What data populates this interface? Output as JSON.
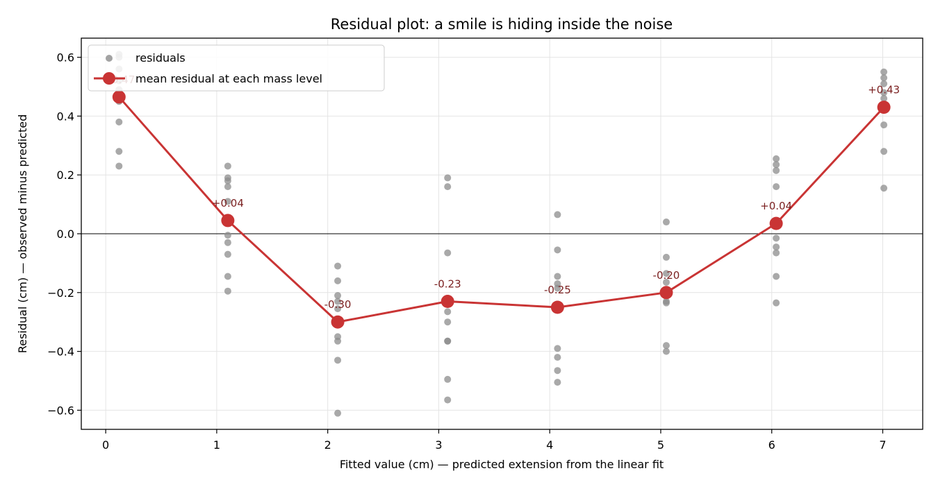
{
  "chart_data": {
    "type": "scatter",
    "title": "Residual plot: a smile is hiding inside the noise",
    "xlabel": "Fitted value (cm) — predicted extension from the linear fit",
    "ylabel": "Residual (cm) — observed minus predicted",
    "xlim": [
      -0.22,
      7.36
    ],
    "ylim": [
      -0.665,
      0.665
    ],
    "xticks": [
      0,
      1,
      2,
      3,
      4,
      5,
      6,
      7
    ],
    "yticks": [
      -0.6,
      -0.4,
      -0.2,
      0.0,
      0.2,
      0.4,
      0.6
    ],
    "ytick_labels": [
      "−0.6",
      "−0.4",
      "−0.2",
      "0.0",
      "0.2",
      "0.4",
      "0.6"
    ],
    "grid": true,
    "zero_line": true,
    "legend_position": "top-left",
    "series": [
      {
        "name": "residuals",
        "kind": "scatter",
        "color": "#8c8c8c",
        "points": [
          {
            "x": 0.12,
            "y": 0.61
          },
          {
            "x": 0.12,
            "y": 0.6
          },
          {
            "x": 0.12,
            "y": 0.56
          },
          {
            "x": 0.12,
            "y": 0.52
          },
          {
            "x": 0.12,
            "y": 0.49
          },
          {
            "x": 0.12,
            "y": 0.45
          },
          {
            "x": 0.12,
            "y": 0.38
          },
          {
            "x": 0.12,
            "y": 0.28
          },
          {
            "x": 0.12,
            "y": 0.23
          },
          {
            "x": 1.1,
            "y": 0.23
          },
          {
            "x": 1.1,
            "y": 0.19
          },
          {
            "x": 1.1,
            "y": 0.18
          },
          {
            "x": 1.1,
            "y": 0.16
          },
          {
            "x": 1.1,
            "y": 0.11
          },
          {
            "x": 1.1,
            "y": -0.005
          },
          {
            "x": 1.1,
            "y": -0.03
          },
          {
            "x": 1.1,
            "y": -0.07
          },
          {
            "x": 1.1,
            "y": -0.145
          },
          {
            "x": 1.1,
            "y": -0.195
          },
          {
            "x": 2.09,
            "y": -0.11
          },
          {
            "x": 2.09,
            "y": -0.16
          },
          {
            "x": 2.09,
            "y": -0.21
          },
          {
            "x": 2.09,
            "y": -0.23
          },
          {
            "x": 2.09,
            "y": -0.255
          },
          {
            "x": 2.09,
            "y": -0.35
          },
          {
            "x": 2.09,
            "y": -0.365
          },
          {
            "x": 2.09,
            "y": -0.43
          },
          {
            "x": 2.09,
            "y": -0.61
          },
          {
            "x": 3.08,
            "y": 0.19
          },
          {
            "x": 3.08,
            "y": 0.16
          },
          {
            "x": 3.08,
            "y": -0.065
          },
          {
            "x": 3.08,
            "y": -0.265
          },
          {
            "x": 3.08,
            "y": -0.3
          },
          {
            "x": 3.08,
            "y": -0.365
          },
          {
            "x": 3.08,
            "y": -0.365
          },
          {
            "x": 3.08,
            "y": -0.495
          },
          {
            "x": 3.08,
            "y": -0.565
          },
          {
            "x": 4.07,
            "y": 0.065
          },
          {
            "x": 4.07,
            "y": -0.055
          },
          {
            "x": 4.07,
            "y": -0.145
          },
          {
            "x": 4.07,
            "y": -0.17
          },
          {
            "x": 4.07,
            "y": -0.185
          },
          {
            "x": 4.07,
            "y": -0.39
          },
          {
            "x": 4.07,
            "y": -0.42
          },
          {
            "x": 4.07,
            "y": -0.465
          },
          {
            "x": 4.07,
            "y": -0.505
          },
          {
            "x": 5.05,
            "y": 0.04
          },
          {
            "x": 5.05,
            "y": -0.08
          },
          {
            "x": 5.05,
            "y": -0.135
          },
          {
            "x": 5.05,
            "y": -0.165
          },
          {
            "x": 5.05,
            "y": -0.23
          },
          {
            "x": 5.05,
            "y": -0.235
          },
          {
            "x": 5.05,
            "y": -0.38
          },
          {
            "x": 5.05,
            "y": -0.4
          },
          {
            "x": 6.04,
            "y": 0.255
          },
          {
            "x": 6.04,
            "y": 0.235
          },
          {
            "x": 6.04,
            "y": 0.215
          },
          {
            "x": 6.04,
            "y": 0.16
          },
          {
            "x": 6.04,
            "y": -0.015
          },
          {
            "x": 6.04,
            "y": -0.045
          },
          {
            "x": 6.04,
            "y": -0.065
          },
          {
            "x": 6.04,
            "y": -0.145
          },
          {
            "x": 6.04,
            "y": -0.235
          },
          {
            "x": 7.01,
            "y": 0.55
          },
          {
            "x": 7.01,
            "y": 0.53
          },
          {
            "x": 7.01,
            "y": 0.51
          },
          {
            "x": 7.01,
            "y": 0.48
          },
          {
            "x": 7.01,
            "y": 0.46
          },
          {
            "x": 7.01,
            "y": 0.37
          },
          {
            "x": 7.01,
            "y": 0.28
          },
          {
            "x": 7.01,
            "y": 0.155
          }
        ]
      },
      {
        "name": "mean residual at each mass level",
        "kind": "line",
        "color": "#c93434",
        "points": [
          {
            "x": 0.12,
            "y": 0.465,
            "label": "+0.47"
          },
          {
            "x": 1.1,
            "y": 0.045,
            "label": "+0.04"
          },
          {
            "x": 2.09,
            "y": -0.3,
            "label": "-0.30"
          },
          {
            "x": 3.08,
            "y": -0.23,
            "label": "-0.23"
          },
          {
            "x": 4.07,
            "y": -0.25,
            "label": "-0.25"
          },
          {
            "x": 5.05,
            "y": -0.2,
            "label": "-0.20"
          },
          {
            "x": 6.04,
            "y": 0.035,
            "label": "+0.04"
          },
          {
            "x": 7.01,
            "y": 0.43,
            "label": "+0.43"
          }
        ]
      }
    ]
  }
}
